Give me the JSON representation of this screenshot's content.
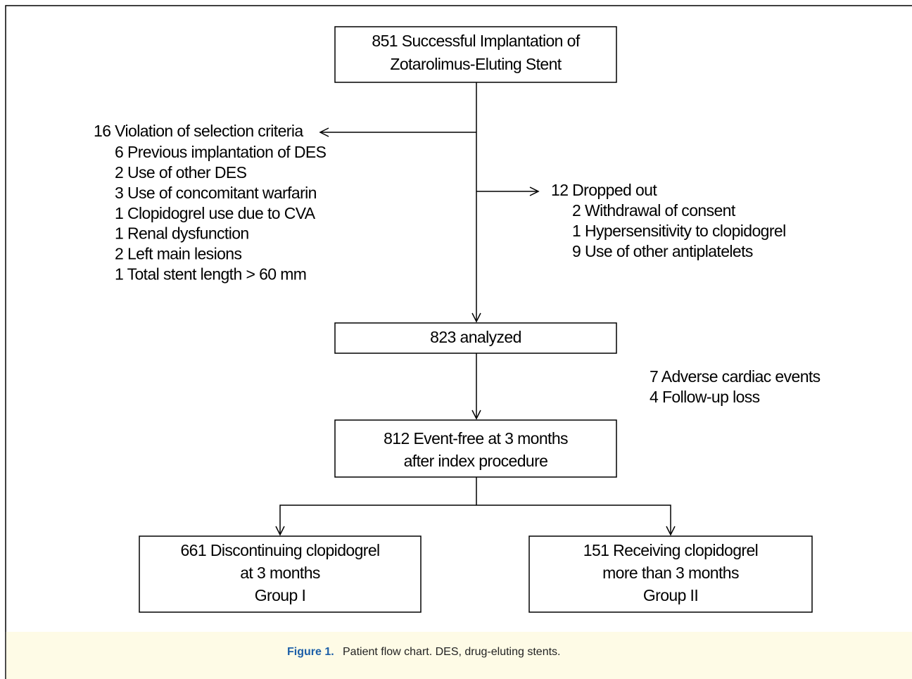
{
  "nodes": [
    {
      "lines": [
        "851 Successful Implantation of",
        "Zotarolimus-Eluting Stent"
      ]
    },
    {
      "lines": [
        "823 analyzed"
      ]
    },
    {
      "lines": [
        "812 Event-free at 3 months",
        "after index procedure"
      ]
    },
    {
      "lines": [
        "661 Discontinuing  clopidogrel",
        "at 3 months",
        "Group I"
      ]
    },
    {
      "lines": [
        "151 Receiving clopidogrel",
        "more than 3 months",
        "Group II"
      ]
    }
  ],
  "exclusions": {
    "header": "16 Violation of selection criteria",
    "items": [
      "6 Previous implantation of DES",
      "2 Use of other DES",
      "3 Use of concomitant warfarin",
      "1 Clopidogrel use due to CVA",
      "1 Renal dysfunction",
      "2 Left main lesions",
      "1 Total stent length > 60 mm"
    ]
  },
  "dropouts": {
    "header": "12 Dropped out",
    "items": [
      "2 Withdrawal of consent",
      "1 Hypersensitivity to clopidogrel",
      "9 Use of other antiplatelets"
    ]
  },
  "losses": [
    "7 Adverse cardiac events",
    "4 Follow-up loss"
  ],
  "caption": {
    "label": "Figure 1.",
    "text": "Patient flow chart. DES, drug-eluting stents."
  }
}
